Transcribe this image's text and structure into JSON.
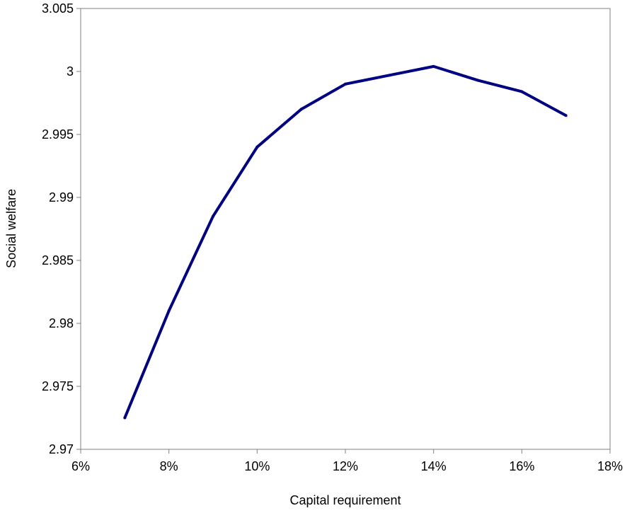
{
  "chart_data": {
    "type": "line",
    "title": "",
    "xlabel": "Capital requirement",
    "ylabel": "Social welfare",
    "xlim": [
      0.06,
      0.18
    ],
    "ylim": [
      2.97,
      3.005
    ],
    "x_ticks": [
      "6%",
      "8%",
      "10%",
      "12%",
      "14%",
      "16%",
      "18%"
    ],
    "y_ticks": [
      "2.97",
      "2.975",
      "2.98",
      "2.985",
      "2.99",
      "2.995",
      "3",
      "3.005"
    ],
    "grid": false,
    "legend": false,
    "series": [
      {
        "color": "#000080",
        "x": [
          0.07,
          0.08,
          0.09,
          0.1,
          0.11,
          0.12,
          0.13,
          0.14,
          0.15,
          0.16,
          0.17
        ],
        "y": [
          2.9725,
          2.981,
          2.9885,
          2.994,
          2.997,
          2.999,
          2.9997,
          3.0004,
          2.9993,
          2.9984,
          2.9965
        ]
      }
    ]
  }
}
